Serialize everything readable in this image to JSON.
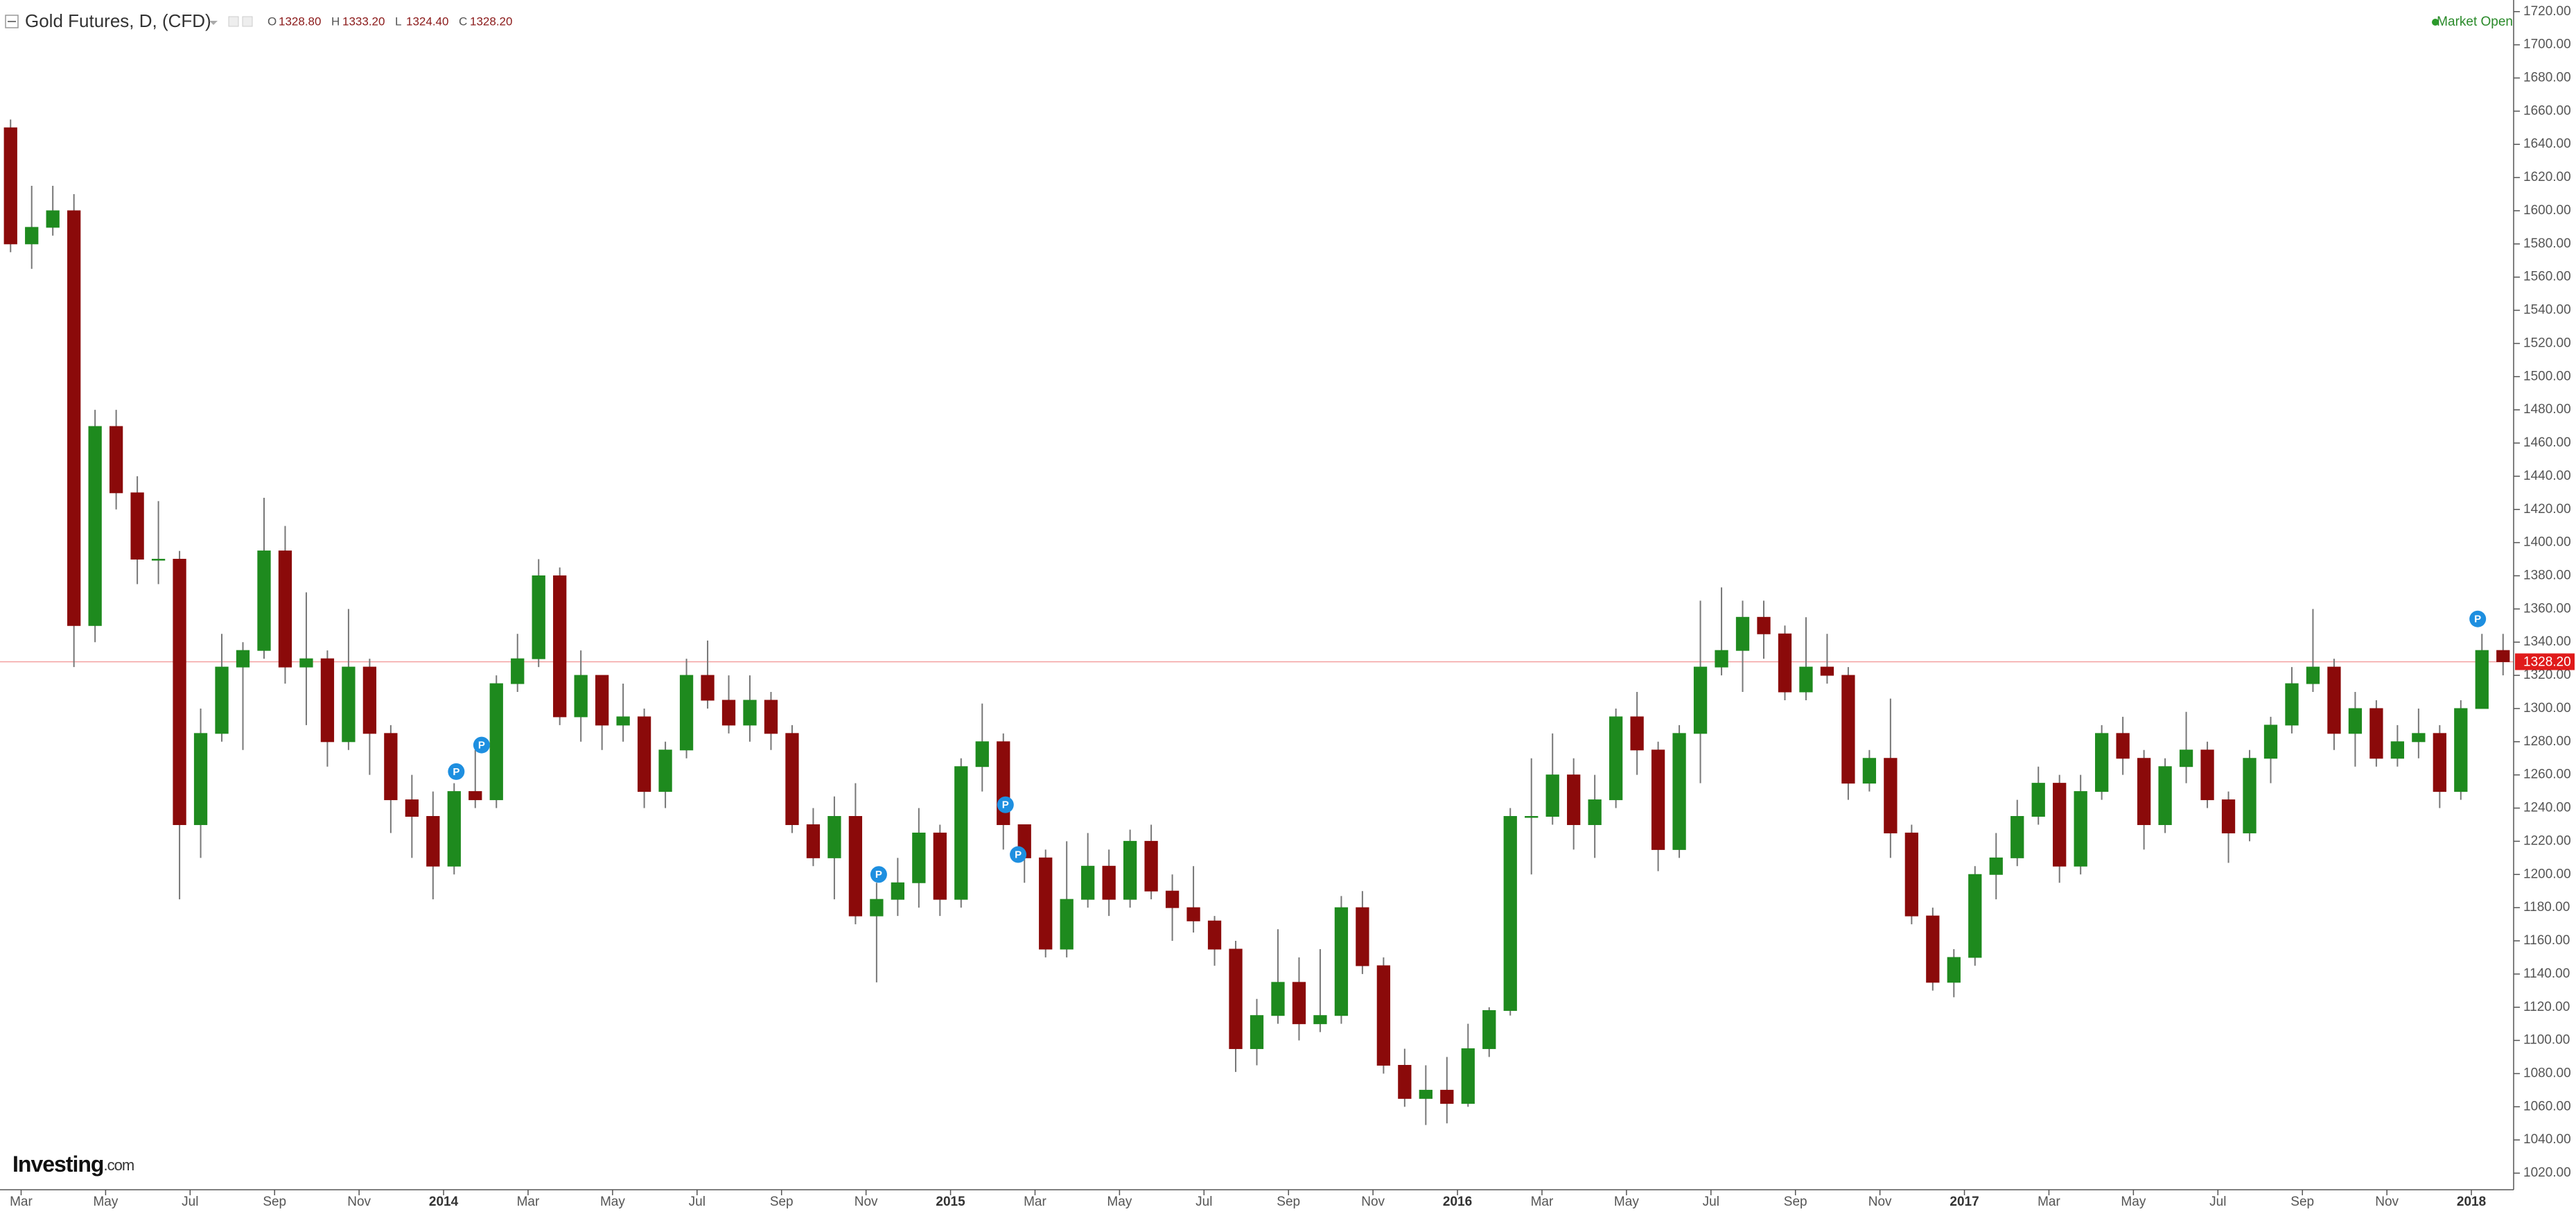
{
  "chart_data": {
    "type": "candlestick",
    "title": "Gold Futures, D, (CFD)",
    "ohlc_header": [
      {
        "key": "O",
        "value": "1328.80"
      },
      {
        "key": "H",
        "value": "1333.20"
      },
      {
        "key": "L",
        "value": "1324.40"
      },
      {
        "key": "C",
        "value": "1328.20"
      }
    ],
    "status": "Market Open",
    "logo": "Investing",
    "logo_suffix": ".com",
    "up_color": "#1e8a1e",
    "down_color": "#8b0a0a",
    "grid": false,
    "ylim": [
      1010,
      1727
    ],
    "yticks": [
      {
        "value": 1020,
        "label": "1020.00"
      },
      {
        "value": 1040,
        "label": "1040.00"
      },
      {
        "value": 1060,
        "label": "1060.00"
      },
      {
        "value": 1080,
        "label": "1080.00"
      },
      {
        "value": 1100,
        "label": "1100.00"
      },
      {
        "value": 1120,
        "label": "1120.00"
      },
      {
        "value": 1140,
        "label": "1140.00"
      },
      {
        "value": 1160,
        "label": "1160.00"
      },
      {
        "value": 1180,
        "label": "1180.00"
      },
      {
        "value": 1200,
        "label": "1200.00"
      },
      {
        "value": 1220,
        "label": "1220.00"
      },
      {
        "value": 1240,
        "label": "1240.00"
      },
      {
        "value": 1260,
        "label": "1260.00"
      },
      {
        "value": 1280,
        "label": "1280.00"
      },
      {
        "value": 1300,
        "label": "1300.00"
      },
      {
        "value": 1320,
        "label": "1320.00"
      },
      {
        "value": 1340,
        "label": "1340.00"
      },
      {
        "value": 1360,
        "label": "1360.00"
      },
      {
        "value": 1380,
        "label": "1380.00"
      },
      {
        "value": 1400,
        "label": "1400.00"
      },
      {
        "value": 1420,
        "label": "1420.00"
      },
      {
        "value": 1440,
        "label": "1440.00"
      },
      {
        "value": 1460,
        "label": "1460.00"
      },
      {
        "value": 1480,
        "label": "1480.00"
      },
      {
        "value": 1500,
        "label": "1500.00"
      },
      {
        "value": 1520,
        "label": "1520.00"
      },
      {
        "value": 1540,
        "label": "1540.00"
      },
      {
        "value": 1560,
        "label": "1560.00"
      },
      {
        "value": 1580,
        "label": "1580.00"
      },
      {
        "value": 1600,
        "label": "1600.00"
      },
      {
        "value": 1620,
        "label": "1620.00"
      },
      {
        "value": 1640,
        "label": "1640.00"
      },
      {
        "value": 1660,
        "label": "1660.00"
      },
      {
        "value": 1680,
        "label": "1680.00"
      },
      {
        "value": 1700,
        "label": "1700.00"
      },
      {
        "value": 1720,
        "label": "1720.00"
      }
    ],
    "xlim": [
      0,
      119
    ],
    "xticks": [
      {
        "value": 1,
        "label": "Mar"
      },
      {
        "value": 5,
        "label": "May"
      },
      {
        "value": 9,
        "label": "Jul"
      },
      {
        "value": 13,
        "label": "Sep"
      },
      {
        "value": 17,
        "label": "Nov"
      },
      {
        "value": 21,
        "label": "2014"
      },
      {
        "value": 25,
        "label": "Mar"
      },
      {
        "value": 29,
        "label": "May"
      },
      {
        "value": 33,
        "label": "Jul"
      },
      {
        "value": 37,
        "label": "Sep"
      },
      {
        "value": 41,
        "label": "Nov"
      },
      {
        "value": 45,
        "label": "2015"
      },
      {
        "value": 49,
        "label": "Mar"
      },
      {
        "value": 53,
        "label": "May"
      },
      {
        "value": 57,
        "label": "Jul"
      },
      {
        "value": 61,
        "label": "Sep"
      },
      {
        "value": 65,
        "label": "Nov"
      },
      {
        "value": 69,
        "label": "2016"
      },
      {
        "value": 73,
        "label": "Mar"
      },
      {
        "value": 77,
        "label": "May"
      },
      {
        "value": 81,
        "label": "Jul"
      },
      {
        "value": 85,
        "label": "Sep"
      },
      {
        "value": 89,
        "label": "Nov"
      },
      {
        "value": 93,
        "label": "2017"
      },
      {
        "value": 97,
        "label": "Mar"
      },
      {
        "value": 101,
        "label": "May"
      },
      {
        "value": 105,
        "label": "Jul"
      },
      {
        "value": 109,
        "label": "Sep"
      },
      {
        "value": 113,
        "label": "Nov"
      },
      {
        "value": 117,
        "label": "2018"
      }
    ],
    "last_price": {
      "value": 1328.2,
      "label": "1328.20"
    },
    "marker_label": "P",
    "pivot_markers": [
      {
        "x": 21.6,
        "y": 1262
      },
      {
        "x": 22.8,
        "y": 1278
      },
      {
        "x": 41.6,
        "y": 1200
      },
      {
        "x": 47.6,
        "y": 1242
      },
      {
        "x": 48.2,
        "y": 1212
      },
      {
        "x": 117.3,
        "y": 1354
      }
    ],
    "candles": [
      [
        1650,
        1655,
        1575,
        1580
      ],
      [
        1580,
        1615,
        1565,
        1590
      ],
      [
        1590,
        1615,
        1585,
        1600
      ],
      [
        1600,
        1610,
        1325,
        1350
      ],
      [
        1350,
        1480,
        1340,
        1470
      ],
      [
        1470,
        1480,
        1420,
        1430
      ],
      [
        1430,
        1440,
        1375,
        1390
      ],
      [
        1390,
        1425,
        1375,
        1390
      ],
      [
        1390,
        1395,
        1185,
        1230
      ],
      [
        1230,
        1300,
        1210,
        1285
      ],
      [
        1285,
        1345,
        1280,
        1325
      ],
      [
        1325,
        1340,
        1275,
        1335
      ],
      [
        1335,
        1427,
        1330,
        1395
      ],
      [
        1395,
        1410,
        1315,
        1325
      ],
      [
        1325,
        1370,
        1290,
        1330
      ],
      [
        1330,
        1335,
        1265,
        1280
      ],
      [
        1280,
        1360,
        1275,
        1325
      ],
      [
        1325,
        1330,
        1260,
        1285
      ],
      [
        1285,
        1290,
        1225,
        1245
      ],
      [
        1245,
        1260,
        1210,
        1235
      ],
      [
        1235,
        1250,
        1185,
        1205
      ],
      [
        1205,
        1255,
        1200,
        1250
      ],
      [
        1250,
        1275,
        1240,
        1245
      ],
      [
        1245,
        1320,
        1240,
        1315
      ],
      [
        1315,
        1345,
        1310,
        1330
      ],
      [
        1330,
        1390,
        1325,
        1380
      ],
      [
        1380,
        1385,
        1290,
        1295
      ],
      [
        1295,
        1335,
        1280,
        1320
      ],
      [
        1320,
        1320,
        1275,
        1290
      ],
      [
        1290,
        1315,
        1280,
        1295
      ],
      [
        1295,
        1300,
        1240,
        1250
      ],
      [
        1250,
        1280,
        1240,
        1275
      ],
      [
        1275,
        1330,
        1270,
        1320
      ],
      [
        1320,
        1341,
        1300,
        1305
      ],
      [
        1305,
        1320,
        1285,
        1290
      ],
      [
        1290,
        1320,
        1280,
        1305
      ],
      [
        1305,
        1310,
        1275,
        1285
      ],
      [
        1285,
        1290,
        1225,
        1230
      ],
      [
        1230,
        1240,
        1205,
        1210
      ],
      [
        1210,
        1247,
        1185,
        1235
      ],
      [
        1235,
        1255,
        1170,
        1175
      ],
      [
        1175,
        1195,
        1135,
        1185
      ],
      [
        1185,
        1210,
        1175,
        1195
      ],
      [
        1195,
        1240,
        1180,
        1225
      ],
      [
        1225,
        1230,
        1175,
        1185
      ],
      [
        1185,
        1270,
        1180,
        1265
      ],
      [
        1265,
        1303,
        1250,
        1280
      ],
      [
        1280,
        1285,
        1215,
        1230
      ],
      [
        1230,
        1230,
        1195,
        1210
      ],
      [
        1210,
        1215,
        1150,
        1155
      ],
      [
        1155,
        1220,
        1150,
        1185
      ],
      [
        1185,
        1225,
        1180,
        1205
      ],
      [
        1205,
        1215,
        1175,
        1185
      ],
      [
        1185,
        1227,
        1180,
        1220
      ],
      [
        1220,
        1230,
        1185,
        1190
      ],
      [
        1190,
        1200,
        1160,
        1180
      ],
      [
        1180,
        1205,
        1165,
        1172
      ],
      [
        1172,
        1175,
        1145,
        1155
      ],
      [
        1155,
        1160,
        1081,
        1095
      ],
      [
        1095,
        1125,
        1085,
        1115
      ],
      [
        1115,
        1167,
        1110,
        1135
      ],
      [
        1135,
        1150,
        1100,
        1110
      ],
      [
        1110,
        1155,
        1105,
        1115
      ],
      [
        1115,
        1187,
        1110,
        1180
      ],
      [
        1180,
        1190,
        1140,
        1145
      ],
      [
        1145,
        1150,
        1080,
        1085
      ],
      [
        1085,
        1095,
        1060,
        1065
      ],
      [
        1065,
        1085,
        1049,
        1070
      ],
      [
        1070,
        1090,
        1050,
        1062
      ],
      [
        1062,
        1110,
        1060,
        1095
      ],
      [
        1095,
        1120,
        1090,
        1118
      ],
      [
        1118,
        1240,
        1115,
        1235
      ],
      [
        1235,
        1270,
        1200,
        1235
      ],
      [
        1235,
        1285,
        1230,
        1260
      ],
      [
        1260,
        1270,
        1215,
        1230
      ],
      [
        1230,
        1260,
        1210,
        1245
      ],
      [
        1245,
        1300,
        1240,
        1295
      ],
      [
        1295,
        1310,
        1260,
        1275
      ],
      [
        1275,
        1280,
        1202,
        1215
      ],
      [
        1215,
        1290,
        1210,
        1285
      ],
      [
        1285,
        1365,
        1255,
        1325
      ],
      [
        1325,
        1373,
        1320,
        1335
      ],
      [
        1335,
        1365,
        1310,
        1355
      ],
      [
        1355,
        1365,
        1330,
        1345
      ],
      [
        1345,
        1350,
        1305,
        1310
      ],
      [
        1310,
        1355,
        1305,
        1325
      ],
      [
        1325,
        1345,
        1315,
        1320
      ],
      [
        1320,
        1325,
        1245,
        1255
      ],
      [
        1255,
        1275,
        1250,
        1270
      ],
      [
        1270,
        1306,
        1210,
        1225
      ],
      [
        1225,
        1230,
        1170,
        1175
      ],
      [
        1175,
        1180,
        1130,
        1135
      ],
      [
        1135,
        1155,
        1126,
        1150
      ],
      [
        1150,
        1205,
        1145,
        1200
      ],
      [
        1200,
        1225,
        1185,
        1210
      ],
      [
        1210,
        1245,
        1205,
        1235
      ],
      [
        1235,
        1265,
        1230,
        1255
      ],
      [
        1255,
        1260,
        1195,
        1205
      ],
      [
        1205,
        1260,
        1200,
        1250
      ],
      [
        1250,
        1290,
        1245,
        1285
      ],
      [
        1285,
        1295,
        1260,
        1270
      ],
      [
        1270,
        1275,
        1215,
        1230
      ],
      [
        1230,
        1270,
        1225,
        1265
      ],
      [
        1265,
        1298,
        1255,
        1275
      ],
      [
        1275,
        1280,
        1240,
        1245
      ],
      [
        1245,
        1250,
        1207,
        1225
      ],
      [
        1225,
        1275,
        1220,
        1270
      ],
      [
        1270,
        1295,
        1255,
        1290
      ],
      [
        1290,
        1325,
        1285,
        1315
      ],
      [
        1315,
        1360,
        1310,
        1325
      ],
      [
        1325,
        1330,
        1275,
        1285
      ],
      [
        1285,
        1310,
        1265,
        1300
      ],
      [
        1300,
        1305,
        1265,
        1270
      ],
      [
        1270,
        1290,
        1265,
        1280
      ],
      [
        1280,
        1300,
        1270,
        1285
      ],
      [
        1285,
        1290,
        1240,
        1250
      ],
      [
        1250,
        1305,
        1245,
        1300
      ],
      [
        1300,
        1345,
        1300,
        1335
      ],
      [
        1335,
        1345,
        1320,
        1328.2
      ]
    ]
  }
}
